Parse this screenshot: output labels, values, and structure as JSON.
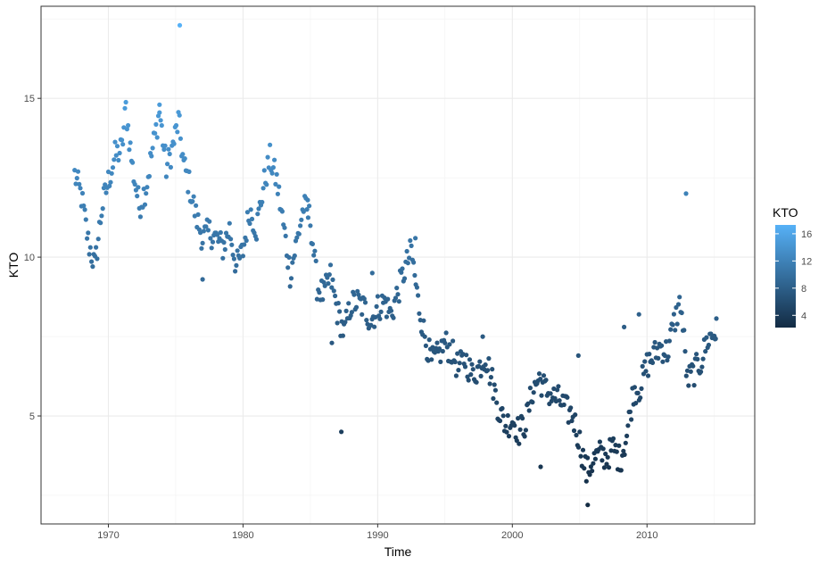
{
  "chart_data": {
    "type": "scatter",
    "xlabel": "Time",
    "ylabel": "KTO",
    "xlim": [
      1965,
      2018
    ],
    "ylim": [
      1.6,
      17.9
    ],
    "x_ticks": [
      1970,
      1980,
      1990,
      2000,
      2010
    ],
    "y_ticks": [
      5,
      10,
      15
    ],
    "grid": true,
    "legend": {
      "title": "KTO",
      "placement": "right",
      "type": "colorbar",
      "ticks": [
        4,
        8,
        12,
        16
      ],
      "range": [
        2.2,
        17.3
      ],
      "color_low": "#132B43",
      "color_high": "#56B1F7"
    },
    "anchors": [
      [
        1967.5,
        12.6
      ],
      [
        1968.0,
        11.9
      ],
      [
        1968.5,
        10.5
      ],
      [
        1969.0,
        9.7
      ],
      [
        1969.5,
        11.5
      ],
      [
        1970.0,
        12.4
      ],
      [
        1970.5,
        13.2
      ],
      [
        1971.0,
        13.4
      ],
      [
        1971.3,
        14.7
      ],
      [
        1971.8,
        12.8
      ],
      [
        1972.3,
        11.6
      ],
      [
        1972.8,
        12.2
      ],
      [
        1973.2,
        13.2
      ],
      [
        1973.8,
        14.6
      ],
      [
        1974.3,
        12.8
      ],
      [
        1974.8,
        13.5
      ],
      [
        1975.2,
        14.3
      ],
      [
        1975.6,
        12.9
      ],
      [
        1976.0,
        12.3
      ],
      [
        1976.5,
        11.3
      ],
      [
        1977.0,
        10.6
      ],
      [
        1977.5,
        10.8
      ],
      [
        1978.0,
        10.6
      ],
      [
        1978.5,
        10.3
      ],
      [
        1979.0,
        10.9
      ],
      [
        1979.5,
        9.7
      ],
      [
        1980.0,
        10.2
      ],
      [
        1980.5,
        11.5
      ],
      [
        1981.0,
        10.9
      ],
      [
        1981.5,
        12.2
      ],
      [
        1982.0,
        13.1
      ],
      [
        1982.5,
        12.4
      ],
      [
        1983.0,
        11.0
      ],
      [
        1983.5,
        9.5
      ],
      [
        1984.0,
        10.5
      ],
      [
        1984.5,
        11.6
      ],
      [
        1985.0,
        11.2
      ],
      [
        1985.5,
        9.1
      ],
      [
        1986.0,
        8.8
      ],
      [
        1986.5,
        9.4
      ],
      [
        1987.0,
        8.3
      ],
      [
        1987.5,
        7.6
      ],
      [
        1988.0,
        8.5
      ],
      [
        1988.5,
        8.6
      ],
      [
        1989.0,
        8.4
      ],
      [
        1989.5,
        8.0
      ],
      [
        1990.0,
        8.4
      ],
      [
        1990.5,
        8.6
      ],
      [
        1991.0,
        8.2
      ],
      [
        1991.5,
        8.9
      ],
      [
        1992.0,
        9.6
      ],
      [
        1992.5,
        10.2
      ],
      [
        1993.0,
        8.6
      ],
      [
        1993.5,
        7.5
      ],
      [
        1994.0,
        6.7
      ],
      [
        1994.5,
        6.9
      ],
      [
        1995.0,
        7.3
      ],
      [
        1995.5,
        7.0
      ],
      [
        1996.0,
        6.5
      ],
      [
        1996.5,
        6.8
      ],
      [
        1997.0,
        6.3
      ],
      [
        1997.5,
        6.5
      ],
      [
        1998.0,
        6.9
      ],
      [
        1998.5,
        6.1
      ],
      [
        1999.0,
        5.2
      ],
      [
        1999.5,
        4.7
      ],
      [
        2000.0,
        4.9
      ],
      [
        2000.5,
        4.5
      ],
      [
        2001.0,
        4.8
      ],
      [
        2001.5,
        5.8
      ],
      [
        2002.0,
        6.2
      ],
      [
        2002.5,
        5.8
      ],
      [
        2003.0,
        5.6
      ],
      [
        2003.5,
        5.5
      ],
      [
        2004.0,
        5.2
      ],
      [
        2004.5,
        5.0
      ],
      [
        2005.0,
        4.2
      ],
      [
        2005.5,
        3.2
      ],
      [
        2006.0,
        3.6
      ],
      [
        2006.5,
        3.8
      ],
      [
        2007.0,
        3.7
      ],
      [
        2007.5,
        4.0
      ],
      [
        2008.0,
        3.6
      ],
      [
        2008.5,
        4.4
      ],
      [
        2009.0,
        5.8
      ],
      [
        2009.5,
        5.9
      ],
      [
        2010.0,
        6.6
      ],
      [
        2010.5,
        6.9
      ],
      [
        2011.0,
        7.2
      ],
      [
        2011.5,
        7.0
      ],
      [
        2012.0,
        7.9
      ],
      [
        2012.5,
        8.6
      ],
      [
        2013.0,
        6.1
      ],
      [
        2013.5,
        6.4
      ],
      [
        2014.0,
        6.7
      ],
      [
        2014.5,
        7.4
      ],
      [
        2015.0,
        7.6
      ],
      [
        2015.2,
        7.7
      ]
    ],
    "extra_points": [
      [
        1975.3,
        17.3
      ],
      [
        1987.3,
        4.5
      ],
      [
        2012.9,
        12.0
      ],
      [
        2005.6,
        2.2
      ],
      [
        2009.4,
        8.2
      ],
      [
        2008.3,
        7.8
      ],
      [
        1992.8,
        10.6
      ],
      [
        1984.8,
        11.8
      ],
      [
        1977.0,
        9.3
      ],
      [
        1997.8,
        7.5
      ],
      [
        2002.1,
        3.4
      ],
      [
        1989.6,
        9.5
      ],
      [
        2004.9,
        6.9
      ],
      [
        1986.6,
        7.3
      ],
      [
        1973.8,
        14.8
      ]
    ]
  }
}
